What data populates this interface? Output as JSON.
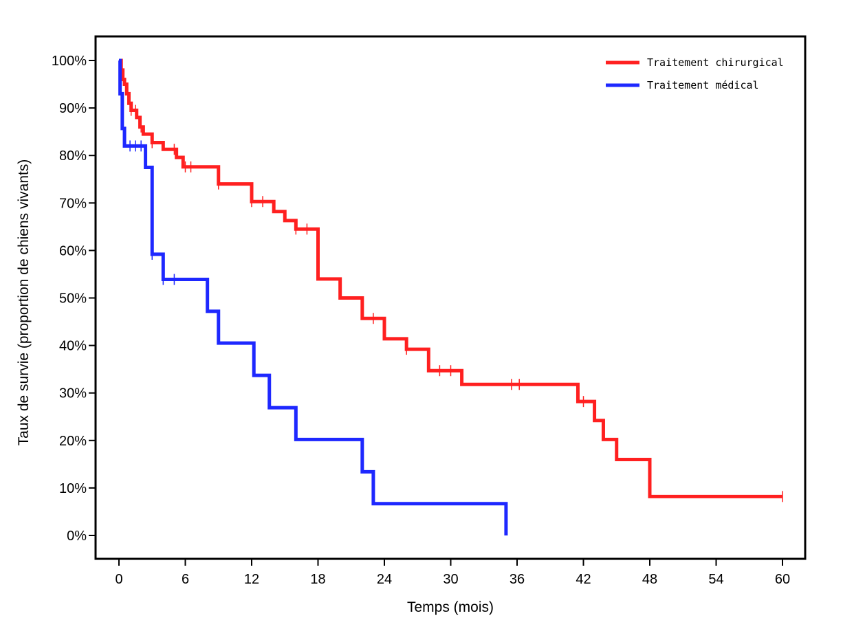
{
  "chart_data": {
    "type": "line",
    "step": "post",
    "title": "",
    "xlabel": "Temps (mois)",
    "ylabel": "Taux de survie (proportion de chiens vivants)",
    "xlim": [
      -2,
      62
    ],
    "ylim": [
      -5,
      106
    ],
    "x_ticks": [
      0,
      6,
      12,
      18,
      24,
      30,
      36,
      42,
      48,
      54,
      60
    ],
    "x_tick_labels": [
      "0",
      "6",
      "12",
      "18",
      "24",
      "30",
      "36",
      "42",
      "48",
      "54",
      "60"
    ],
    "y_ticks": [
      0,
      10,
      20,
      30,
      40,
      50,
      60,
      70,
      80,
      90,
      100
    ],
    "y_tick_labels": [
      "0%",
      "10%",
      "20%",
      "30%",
      "40%",
      "50%",
      "60%",
      "70%",
      "80%",
      "90%",
      "100%"
    ],
    "grid": false,
    "legend_position": "top-right",
    "series": [
      {
        "name": "Traitement chirurgical",
        "color": "#ff2020",
        "points": [
          [
            0,
            100
          ],
          [
            0.2,
            98
          ],
          [
            0.35,
            96
          ],
          [
            0.5,
            95
          ],
          [
            0.7,
            93
          ],
          [
            0.9,
            91
          ],
          [
            1.1,
            89.5
          ],
          [
            1.6,
            88
          ],
          [
            1.9,
            86
          ],
          [
            2.2,
            84.5
          ],
          [
            3,
            82.7
          ],
          [
            4,
            81.3
          ],
          [
            5.2,
            79.6
          ],
          [
            5.8,
            77.6
          ],
          [
            9,
            74
          ],
          [
            12,
            70.3
          ],
          [
            14,
            68.2
          ],
          [
            15,
            66.3
          ],
          [
            16,
            64.5
          ],
          [
            18,
            54
          ],
          [
            20,
            50
          ],
          [
            22,
            45.7
          ],
          [
            24,
            41.4
          ],
          [
            26,
            39.2
          ],
          [
            28,
            34.7
          ],
          [
            31,
            31.8
          ],
          [
            41.5,
            28.2
          ],
          [
            43,
            24.2
          ],
          [
            43.8,
            20.2
          ],
          [
            45,
            16
          ],
          [
            48,
            8.2
          ],
          [
            60,
            8.2
          ]
        ],
        "censored": [
          0.4,
          1.1,
          1.5,
          2,
          3,
          5,
          6,
          6.5,
          9,
          12,
          13,
          16,
          17,
          23,
          26,
          29,
          30,
          35.5,
          36.2,
          42,
          60
        ]
      },
      {
        "name": "Traitement médical",
        "color": "#1e28ff",
        "points": [
          [
            0,
            100
          ],
          [
            0.1,
            93
          ],
          [
            0.3,
            85.7
          ],
          [
            0.5,
            82
          ],
          [
            2.4,
            77.5
          ],
          [
            3,
            59.2
          ],
          [
            4,
            53.9
          ],
          [
            8,
            47.2
          ],
          [
            9,
            40.5
          ],
          [
            12.2,
            33.7
          ],
          [
            13.6,
            26.9
          ],
          [
            16,
            20.2
          ],
          [
            22,
            13.4
          ],
          [
            23,
            6.7
          ],
          [
            35,
            6.7
          ],
          [
            35,
            0
          ]
        ],
        "censored": [
          0.2,
          1,
          1.5,
          2,
          3,
          4,
          5
        ]
      }
    ]
  }
}
